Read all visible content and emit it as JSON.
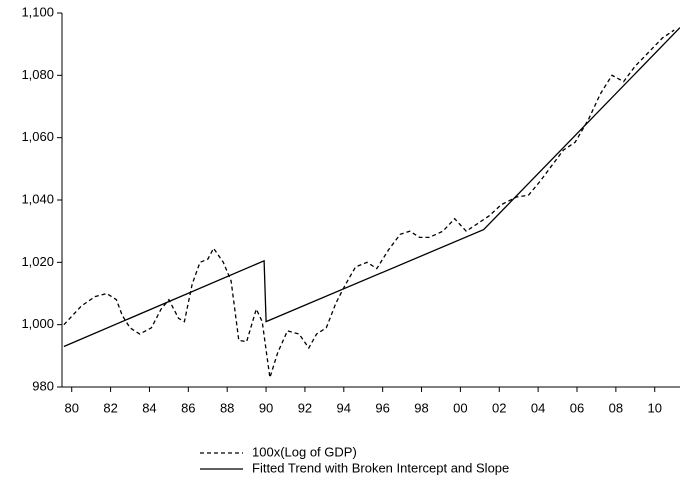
{
  "chart_data": {
    "type": "line",
    "xlim": [
      1979.5,
      2011.3
    ],
    "xticks": [
      {
        "value": 1980,
        "label": "80"
      },
      {
        "value": 1982,
        "label": "82"
      },
      {
        "value": 1984,
        "label": "84"
      },
      {
        "value": 1986,
        "label": "86"
      },
      {
        "value": 1988,
        "label": "88"
      },
      {
        "value": 1990,
        "label": "90"
      },
      {
        "value": 1992,
        "label": "92"
      },
      {
        "value": 1994,
        "label": "94"
      },
      {
        "value": 1996,
        "label": "96"
      },
      {
        "value": 1998,
        "label": "98"
      },
      {
        "value": 2000,
        "label": "00"
      },
      {
        "value": 2002,
        "label": "02"
      },
      {
        "value": 2004,
        "label": "04"
      },
      {
        "value": 2006,
        "label": "06"
      },
      {
        "value": 2008,
        "label": "08"
      },
      {
        "value": 2010,
        "label": "10"
      }
    ],
    "ylim": [
      980,
      1100
    ],
    "yticks": [
      980,
      {
        "value": 1000,
        "label": "1,000"
      },
      {
        "value": 1020,
        "label": "1,020"
      },
      {
        "value": 1040,
        "label": "1,040"
      },
      {
        "value": 1060,
        "label": "1,060"
      },
      {
        "value": 1080,
        "label": "1,080"
      },
      {
        "value": 1100,
        "label": "1,100"
      }
    ],
    "legend": "bottom",
    "series": [
      {
        "name": "100x(Log of GDP)",
        "color": "#000000",
        "dash": "dashed",
        "x": [
          1979.6,
          1980.5,
          1981.2,
          1981.8,
          1982.3,
          1982.6,
          1983.0,
          1983.5,
          1984.1,
          1984.6,
          1985.0,
          1985.5,
          1985.8,
          1986.2,
          1986.6,
          1987.0,
          1987.3,
          1987.8,
          1988.2,
          1988.6,
          1989.0,
          1989.5,
          1989.8,
          1990.2,
          1990.6,
          1991.1,
          1991.7,
          1992.2,
          1992.6,
          1993.1,
          1993.6,
          1994.1,
          1994.6,
          1995.2,
          1995.7,
          1996.3,
          1996.9,
          1997.4,
          1997.9,
          1998.4,
          1999.1,
          1999.7,
          2000.3,
          2000.9,
          2001.5,
          2002.1,
          2002.9,
          2003.5,
          2004.1,
          2004.7,
          2005.3,
          2005.9,
          2006.6,
          2007.2,
          2007.8,
          2008.4,
          2009.0,
          2009.7,
          2010.4,
          2011.0
        ],
        "values": [
          1000,
          1006,
          1009,
          1010,
          1008,
          1003,
          999,
          997,
          999,
          1005,
          1008,
          1002,
          1001,
          1013,
          1020,
          1021,
          1024.5,
          1020,
          1014,
          995,
          994.5,
          1005,
          1001,
          983,
          991,
          998,
          997,
          992.5,
          997,
          999,
          1007,
          1013,
          1018.5,
          1020,
          1018,
          1024,
          1029,
          1030,
          1028,
          1028,
          1030,
          1034,
          1030,
          1032.5,
          1035,
          1038.5,
          1041,
          1041.5,
          1046,
          1051,
          1056,
          1058.5,
          1066,
          1074,
          1080,
          1078,
          1083,
          1087.5,
          1092,
          1094.5
        ]
      },
      {
        "name": "Fitted Trend with Broken Intercept and Slope",
        "color": "#000000",
        "dash": "solid",
        "x": [
          1979.6,
          1989.9,
          1990.0,
          2001.2,
          2011.3
        ],
        "values": [
          993,
          1020.5,
          1001,
          1030.5,
          1095.3
        ]
      }
    ]
  }
}
